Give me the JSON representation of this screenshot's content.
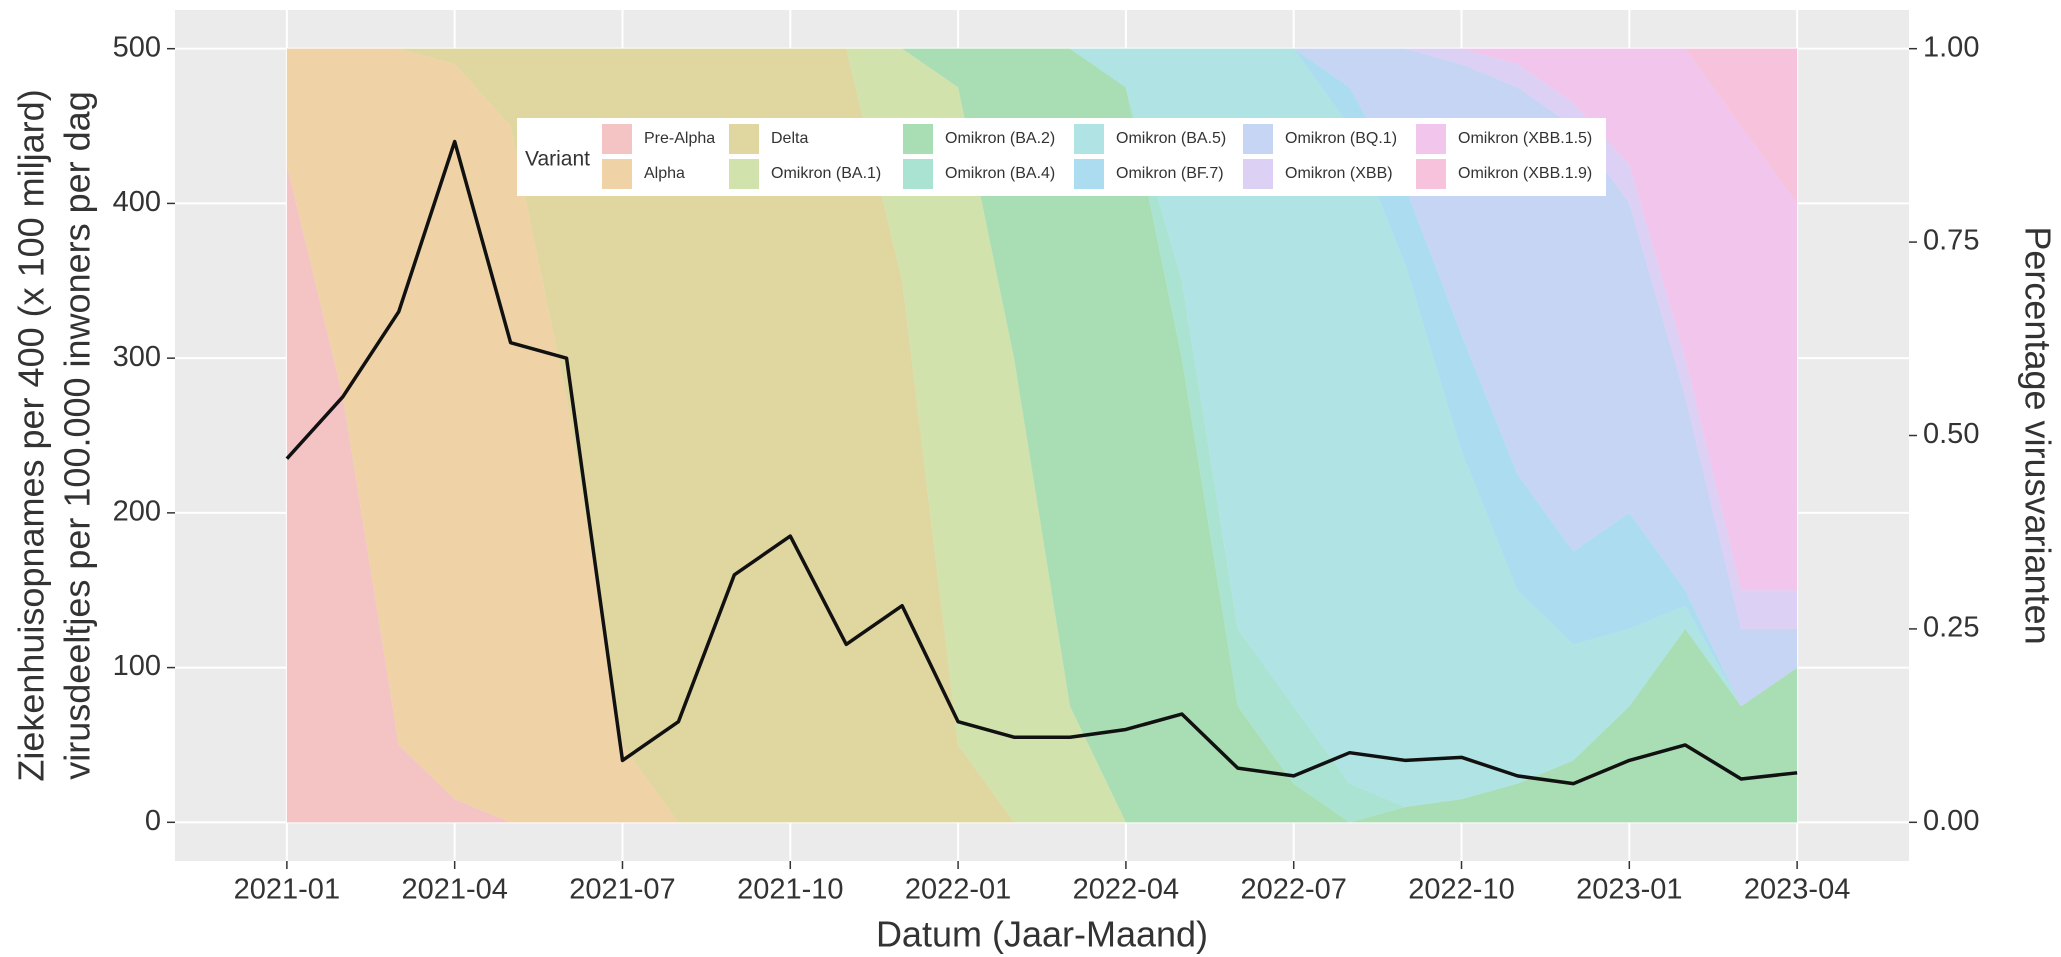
{
  "chart_data": [
    {
      "type": "area",
      "stacked": true,
      "legend_title": "Variant",
      "legend": "top",
      "ylabel2": "Percentage virusvarianten",
      "x": [
        "2021-01",
        "2021-02",
        "2021-03",
        "2021-04",
        "2021-05",
        "2021-06",
        "2021-07",
        "2021-08",
        "2021-09",
        "2021-10",
        "2021-11",
        "2021-12",
        "2022-01",
        "2022-02",
        "2022-03",
        "2022-04",
        "2022-05",
        "2022-06",
        "2022-07",
        "2022-08",
        "2022-09",
        "2022-10",
        "2022-11",
        "2022-12",
        "2023-01",
        "2023-02",
        "2023-03",
        "2023-04"
      ],
      "y2lim": [
        -0.05,
        1.05
      ],
      "y2ticks": [
        {
          "value": 0,
          "label": "0.00"
        },
        {
          "value": 0.25,
          "label": "0.25"
        },
        {
          "value": 0.5,
          "label": "0.50"
        },
        {
          "value": 0.75,
          "label": "0.75"
        },
        {
          "value": 1,
          "label": "1.00"
        }
      ],
      "series": [
        {
          "name": "Pre-Alpha",
          "color": "#f4c4c4",
          "axis": "y2",
          "values": [
            0.85,
            0.55,
            0.1,
            0.03,
            0,
            0,
            0,
            0,
            0,
            0,
            0,
            0,
            0,
            0,
            0,
            0,
            0,
            0,
            0,
            0,
            0,
            0,
            0,
            0,
            0,
            0,
            0,
            0
          ]
        },
        {
          "name": "Alpha",
          "color": "#efd3a6",
          "axis": "y2",
          "values": [
            0.15,
            0.45,
            0.9,
            0.95,
            0.9,
            0.55,
            0.1,
            0,
            0,
            0,
            0,
            0,
            0,
            0,
            0,
            0,
            0,
            0,
            0,
            0,
            0,
            0,
            0,
            0,
            0,
            0,
            0,
            0
          ]
        },
        {
          "name": "Delta",
          "color": "#e0d6a0",
          "axis": "y2",
          "values": [
            0,
            0,
            0,
            0.02,
            0.1,
            0.45,
            0.9,
            1,
            1,
            1,
            1,
            0.7,
            0.1,
            0,
            0,
            0,
            0,
            0,
            0,
            0,
            0,
            0,
            0,
            0,
            0,
            0,
            0,
            0
          ]
        },
        {
          "name": "Omikron (BA.1)",
          "color": "#d2e2ad",
          "axis": "y2",
          "values": [
            0,
            0,
            0,
            0,
            0,
            0,
            0,
            0,
            0,
            0,
            0,
            0.3,
            0.85,
            0.6,
            0.15,
            0,
            0,
            0,
            0,
            0,
            0,
            0,
            0,
            0,
            0,
            0,
            0,
            0
          ]
        },
        {
          "name": "Omikron (BA.2)",
          "color": "#a9deb4",
          "axis": "y2",
          "values": [
            0,
            0,
            0,
            0,
            0,
            0,
            0,
            0,
            0,
            0,
            0,
            0,
            0.05,
            0.4,
            0.85,
            0.95,
            0.6,
            0.15,
            0.05,
            0,
            0.02,
            0.03,
            0.05,
            0.08,
            0.15,
            0.25,
            0.15,
            0.2
          ]
        },
        {
          "name": "Omikron (BA.4)",
          "color": "#abe3d3",
          "axis": "y2",
          "values": [
            0,
            0,
            0,
            0,
            0,
            0,
            0,
            0,
            0,
            0,
            0,
            0,
            0,
            0,
            0,
            0,
            0.1,
            0.1,
            0.1,
            0.05,
            0,
            0,
            0,
            0,
            0,
            0,
            0,
            0
          ]
        },
        {
          "name": "Omikron (BA.5)",
          "color": "#afe3e4",
          "axis": "y2",
          "values": [
            0,
            0,
            0,
            0,
            0,
            0,
            0,
            0,
            0,
            0,
            0,
            0,
            0,
            0,
            0,
            0.05,
            0.3,
            0.75,
            0.85,
            0.85,
            0.7,
            0.45,
            0.25,
            0.15,
            0.1,
            0.03,
            0,
            0
          ]
        },
        {
          "name": "Omikron (BF.7)",
          "color": "#acdcf0",
          "axis": "y2",
          "values": [
            0,
            0,
            0,
            0,
            0,
            0,
            0,
            0,
            0,
            0,
            0,
            0,
            0,
            0,
            0,
            0,
            0,
            0,
            0,
            0.05,
            0.1,
            0.15,
            0.15,
            0.12,
            0.15,
            0.02,
            0,
            0
          ]
        },
        {
          "name": "Omikron (BQ.1)",
          "color": "#c6d5f3",
          "axis": "y2",
          "values": [
            0,
            0,
            0,
            0,
            0,
            0,
            0,
            0,
            0,
            0,
            0,
            0,
            0,
            0,
            0,
            0,
            0,
            0,
            0,
            0.05,
            0.18,
            0.35,
            0.5,
            0.55,
            0.4,
            0.25,
            0.1,
            0.05
          ]
        },
        {
          "name": "Omikron (XBB)",
          "color": "#ddd0f5",
          "axis": "y2",
          "values": [
            0,
            0,
            0,
            0,
            0,
            0,
            0,
            0,
            0,
            0,
            0,
            0,
            0,
            0,
            0,
            0,
            0,
            0,
            0,
            0,
            0,
            0.02,
            0.03,
            0.03,
            0.05,
            0.05,
            0.05,
            0.05
          ]
        },
        {
          "name": "Omikron (XBB.1.5)",
          "color": "#f2c5ec",
          "axis": "y2",
          "values": [
            0,
            0,
            0,
            0,
            0,
            0,
            0,
            0,
            0,
            0,
            0,
            0,
            0,
            0,
            0,
            0,
            0,
            0,
            0,
            0,
            0,
            0,
            0.02,
            0.07,
            0.15,
            0.4,
            0.6,
            0.5
          ]
        },
        {
          "name": "Omikron (XBB.1.9)",
          "color": "#f6c2dc",
          "axis": "y2",
          "values": [
            0,
            0,
            0,
            0,
            0,
            0,
            0,
            0,
            0,
            0,
            0,
            0,
            0,
            0,
            0,
            0,
            0,
            0,
            0,
            0,
            0,
            0,
            0,
            0,
            0,
            0,
            0.1,
            0.2
          ]
        }
      ]
    },
    {
      "type": "line",
      "color": "#111111",
      "ylabel": [
        "Ziekenhuisopnames per 400 (x 100 miljard)",
        "virusdeeltjes per 100.000 inwoners per dag"
      ],
      "xlabel": "Datum (Jaar-Maand)",
      "x": [
        "2021-01",
        "2021-02",
        "2021-03",
        "2021-04",
        "2021-05",
        "2021-06",
        "2021-07",
        "2021-08",
        "2021-09",
        "2021-10",
        "2021-11",
        "2021-12",
        "2022-01",
        "2022-02",
        "2022-03",
        "2022-04",
        "2022-05",
        "2022-06",
        "2022-07",
        "2022-08",
        "2022-09",
        "2022-10",
        "2022-11",
        "2022-12",
        "2023-01",
        "2023-02",
        "2023-03",
        "2023-04"
      ],
      "values": [
        235,
        275,
        330,
        440,
        310,
        300,
        40,
        65,
        160,
        185,
        115,
        140,
        65,
        55,
        55,
        60,
        70,
        35,
        30,
        45,
        40,
        42,
        30,
        25,
        40,
        50,
        28,
        32
      ],
      "xlim": [
        "2020-11",
        "2023-06"
      ],
      "xticks": [
        "2021-01",
        "2021-04",
        "2021-07",
        "2021-10",
        "2022-01",
        "2022-04",
        "2022-07",
        "2022-10",
        "2023-01",
        "2023-04"
      ],
      "ylim": [
        -25,
        525
      ],
      "yticks": [
        0,
        100,
        200,
        300,
        400,
        500
      ],
      "grid": true
    }
  ]
}
